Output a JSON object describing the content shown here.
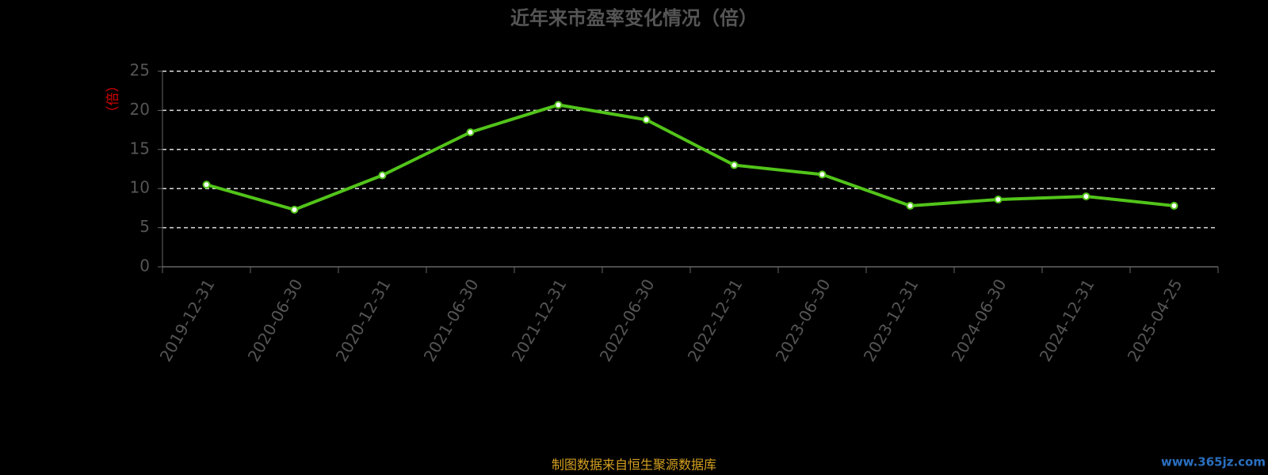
{
  "chart_data": {
    "type": "line",
    "title": "近年来市盈率变化情况（倍）",
    "y_label": "（倍）",
    "categories": [
      "2019-12-31",
      "2020-06-30",
      "2020-12-31",
      "2021-06-30",
      "2021-12-31",
      "2022-06-30",
      "2022-12-31",
      "2023-06-30",
      "2023-12-31",
      "2024-06-30",
      "2024-12-31",
      "2025-04-25"
    ],
    "series": [
      {
        "name": "市盈率",
        "color": "#52c41a",
        "values": [
          10.5,
          7.3,
          11.7,
          17.2,
          20.7,
          18.8,
          13.0,
          11.8,
          7.8,
          8.6,
          9.0,
          7.8
        ]
      }
    ],
    "ylim": [
      0,
      25
    ],
    "yticks": [
      0,
      5,
      10,
      15,
      20,
      25
    ],
    "grid": true,
    "source": "制图数据来自恒生聚源数据库",
    "watermark": "www.365jz.com"
  }
}
